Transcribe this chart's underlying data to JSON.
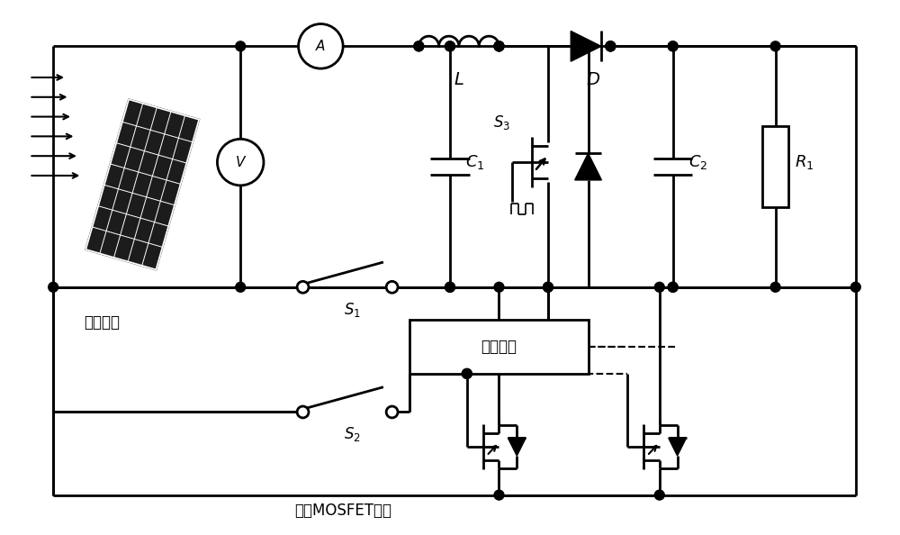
{
  "bg_color": "#ffffff",
  "line_color": "#000000",
  "lw": 2.0,
  "label_guangfu": "光伏组件",
  "label_L": "$L$",
  "label_D": "$D$",
  "label_C1": "$C_1$",
  "label_C2": "$C_2$",
  "label_R1": "$R_1$",
  "label_S1": "$S_1$",
  "label_S2": "$S_2$",
  "label_S3": "$S_3$",
  "label_control": "控制电路",
  "label_mosfet": "多个MOSFET并联",
  "label_A": "A",
  "label_V": "V"
}
